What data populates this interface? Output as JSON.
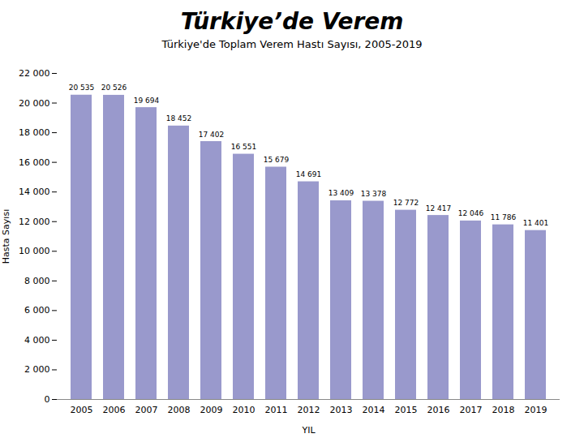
{
  "chart_data": {
    "type": "bar",
    "title": "Türkiye’de Verem",
    "subtitle": "Türkiye'de Toplam Verem Hastı Sayısı, 2005-2019",
    "xlabel": "YIL",
    "ylabel": "Hasta Sayısı",
    "categories": [
      "2005",
      "2006",
      "2007",
      "2008",
      "2009",
      "2010",
      "2011",
      "2012",
      "2013",
      "2014",
      "2015",
      "2016",
      "2017",
      "2018",
      "2019"
    ],
    "values": [
      20535,
      20526,
      19694,
      18452,
      17402,
      16551,
      15679,
      14691,
      13409,
      13378,
      12772,
      12417,
      12046,
      11786,
      11401
    ],
    "value_labels": [
      "20 535",
      "20 526",
      "19 694",
      "18 452",
      "17 402",
      "16 551",
      "15 679",
      "14 691",
      "13 409",
      "13 378",
      "12 772",
      "12 417",
      "12 046",
      "11 786",
      "11 401"
    ],
    "data_labels": true,
    "color": "#9999cc",
    "ylim": [
      0,
      22000
    ],
    "yticks": [
      0,
      {
        "value": 2000,
        "label": "2 000"
      },
      {
        "value": 4000,
        "label": "4 000"
      },
      {
        "value": 6000,
        "label": "6 000"
      },
      {
        "value": 8000,
        "label": "8 000"
      },
      {
        "value": 10000,
        "label": "10 000"
      },
      {
        "value": 12000,
        "label": "12 000"
      },
      {
        "value": 14000,
        "label": "14 000"
      },
      {
        "value": 16000,
        "label": "16 000"
      },
      {
        "value": 18000,
        "label": "18 000"
      },
      {
        "value": 20000,
        "label": "20 000"
      },
      {
        "value": 22000,
        "label": "22 000"
      }
    ],
    "grid": false
  }
}
